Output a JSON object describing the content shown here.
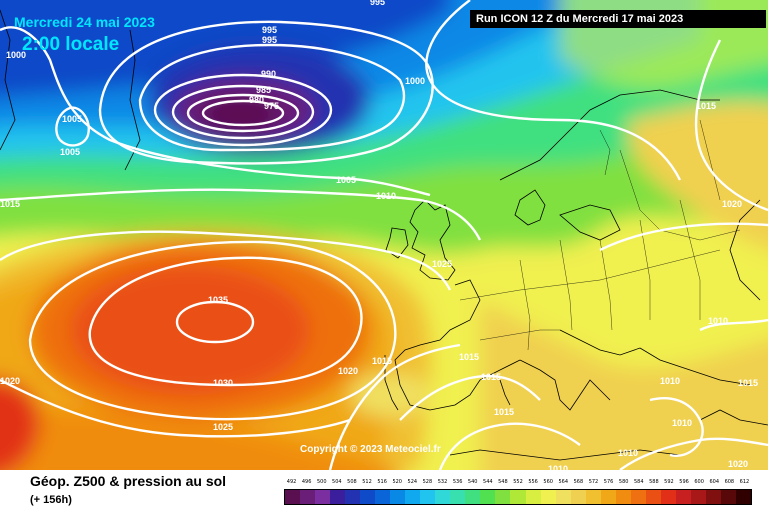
{
  "header": {
    "date": "Mercredi 24 mai 2023",
    "time": "2:00 locale",
    "run": "Run ICON 12 Z du Mercredi 17 mai 2023"
  },
  "copyright": "Copyright © 2023 Meteociel.fr",
  "footer": {
    "caption": "Géop. Z500 & pression au sol",
    "subcaption": "(+ 156h)"
  },
  "legend": {
    "labels": [
      "492",
      "496",
      "500",
      "504",
      "508",
      "512",
      "516",
      "520",
      "524",
      "528",
      "532",
      "536",
      "540",
      "544",
      "548",
      "552",
      "556",
      "560",
      "564",
      "568",
      "572",
      "576",
      "580",
      "584",
      "588",
      "592",
      "596",
      "600",
      "604",
      "608",
      "612"
    ],
    "colors": [
      "#5a1050",
      "#6a1e78",
      "#7a2ea0",
      "#3a1e9c",
      "#2232b0",
      "#0f4ac8",
      "#0a66d8",
      "#0a88e6",
      "#10a8ee",
      "#20c4ee",
      "#30d8d8",
      "#38e0b0",
      "#40e080",
      "#50e050",
      "#80e040",
      "#b0e838",
      "#d8ee40",
      "#f0f050",
      "#f0e060",
      "#f0d050",
      "#f0c030",
      "#f0a818",
      "#f08c10",
      "#ee7010",
      "#ea5014",
      "#e23018",
      "#c82020",
      "#a81818",
      "#801010",
      "#580808",
      "#300000"
    ]
  },
  "isobars": {
    "labels": [
      "995",
      "995",
      "990",
      "985",
      "980",
      "975",
      "1000",
      "1000",
      "1005",
      "1005",
      "1005",
      "1010",
      "1015",
      "1015",
      "1015",
      "1015",
      "1015",
      "1015",
      "1020",
      "1020",
      "1020",
      "1025",
      "1025",
      "1030",
      "1035",
      "1010",
      "1010",
      "1010",
      "1010",
      "1010",
      "1015",
      "1020",
      "995"
    ]
  }
}
